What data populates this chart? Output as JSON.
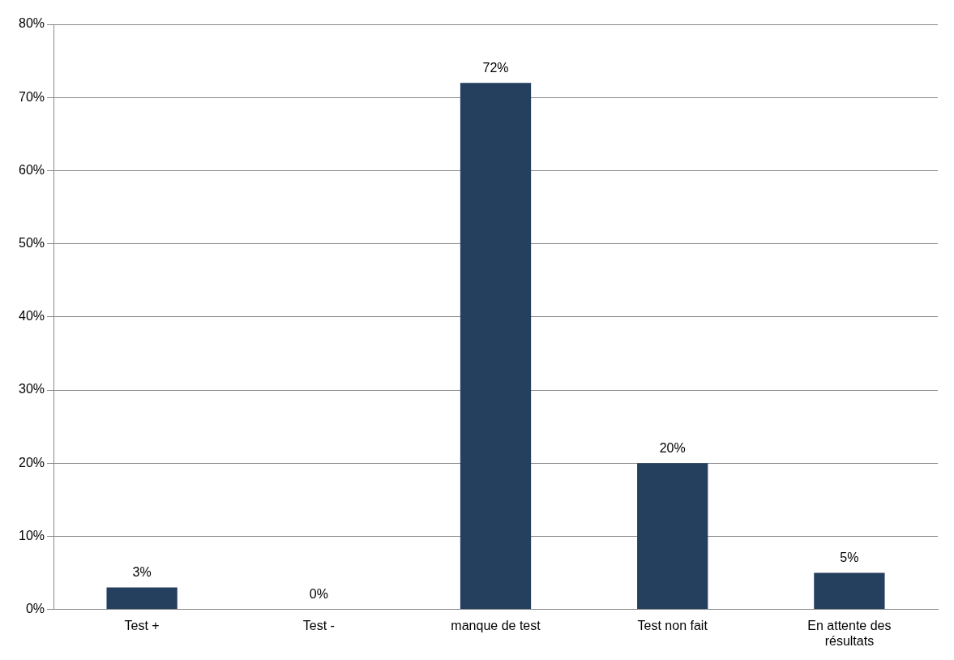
{
  "chart_data": {
    "type": "bar",
    "categories": [
      "Test +",
      "Test -",
      "manque de test",
      "Test non fait",
      "En attente des résultats"
    ],
    "values": [
      3,
      0,
      72,
      20,
      5
    ],
    "color": "#253f5f",
    "value_labels": [
      "3%",
      "0%",
      "72%",
      "20%",
      "5%"
    ],
    "ylim": [
      0,
      80
    ],
    "yticks": [
      {
        "value": 0,
        "label": "0%"
      },
      {
        "value": 10,
        "label": "10%"
      },
      {
        "value": 20,
        "label": "20%"
      },
      {
        "value": 30,
        "label": "30%"
      },
      {
        "value": 40,
        "label": "40%"
      },
      {
        "value": 50,
        "label": "50%"
      },
      {
        "value": 60,
        "label": "60%"
      },
      {
        "value": 70,
        "label": "70%"
      },
      {
        "value": 80,
        "label": "80%"
      }
    ],
    "grid": "y",
    "legend": false
  }
}
